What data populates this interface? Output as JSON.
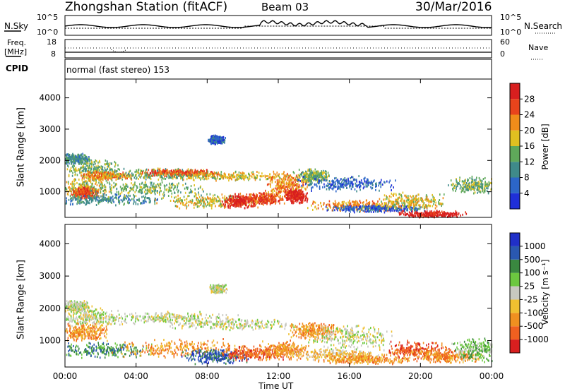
{
  "header": {
    "title": "Zhongshan Station (fitACF)",
    "beam": "Beam 03",
    "date": "30/Mar/2016"
  },
  "small_panels": {
    "nsky_label": "N.Sky",
    "nsearch_label": "N.Search",
    "nsky_ticks": [
      "10^5",
      "10^0"
    ],
    "nsearch_ticks": [
      "10^5",
      "10^0"
    ],
    "freq_label_1": "Freq.",
    "freq_label_2": "[MHz]",
    "freq_ticks": [
      "18",
      "8"
    ],
    "nave_label": "Nave",
    "nave_ticks": [
      "60",
      "0"
    ],
    "cpid_label": "CPID",
    "cpid_text": "normal (fast stereo) 153"
  },
  "chart_data": [
    {
      "type": "heatmap",
      "ylabel": "Slant Range [km]",
      "ylim": [
        180,
        4600
      ],
      "yticks": [
        1000,
        2000,
        3000,
        4000
      ],
      "x_ticks": [
        "00:00",
        "04:00",
        "08:00",
        "12:00",
        "16:00",
        "20:00",
        "00:00"
      ],
      "colorbar": {
        "label": "Power [dB]",
        "ticks": [
          "4",
          "8",
          "12",
          "16",
          "20",
          "24",
          "28"
        ],
        "colors": [
          "#1f2fd8",
          "#2c66c8",
          "#3f8a8a",
          "#5fa85a",
          "#e0c020",
          "#f08c1a",
          "#e8441c",
          "#d81f1f"
        ]
      },
      "blobs": [
        {
          "t": 0.5,
          "r": 2050,
          "dt": 1.0,
          "dr": 180,
          "c": 2
        },
        {
          "t": 1.5,
          "r": 1700,
          "dt": 1.8,
          "dr": 350,
          "c": 3
        },
        {
          "t": 2.3,
          "r": 1500,
          "dt": 1.6,
          "dr": 150,
          "c": 5
        },
        {
          "t": 1.2,
          "r": 1100,
          "dt": 1.6,
          "dr": 350,
          "c": 4
        },
        {
          "t": 1.1,
          "r": 950,
          "dt": 0.8,
          "dr": 200,
          "c": 6
        },
        {
          "t": 2.3,
          "r": 750,
          "dt": 3.5,
          "dr": 200,
          "c": 2
        },
        {
          "t": 5.5,
          "r": 1550,
          "dt": 3.5,
          "dr": 200,
          "c": 3
        },
        {
          "t": 6.5,
          "r": 1600,
          "dt": 2.5,
          "dr": 120,
          "c": 6
        },
        {
          "t": 9.5,
          "r": 1500,
          "dt": 4.0,
          "dr": 160,
          "c": 4
        },
        {
          "t": 4.5,
          "r": 1100,
          "dt": 3.5,
          "dr": 250,
          "c": 3
        },
        {
          "t": 8.0,
          "r": 700,
          "dt": 3.0,
          "dr": 250,
          "c": 4
        },
        {
          "t": 9.8,
          "r": 680,
          "dt": 1.0,
          "dr": 250,
          "c": 7
        },
        {
          "t": 11.2,
          "r": 780,
          "dt": 1.2,
          "dr": 200,
          "c": 6
        },
        {
          "t": 12.5,
          "r": 1200,
          "dt": 1.3,
          "dr": 400,
          "c": 5
        },
        {
          "t": 13.0,
          "r": 850,
          "dt": 0.7,
          "dr": 250,
          "c": 7
        },
        {
          "t": 14.0,
          "r": 1500,
          "dt": 1.0,
          "dr": 250,
          "c": 3
        },
        {
          "t": 15.8,
          "r": 1250,
          "dt": 3.0,
          "dr": 250,
          "c": 1
        },
        {
          "t": 16.5,
          "r": 550,
          "dt": 3.0,
          "dr": 200,
          "c": 5
        },
        {
          "t": 17.5,
          "r": 450,
          "dt": 3.0,
          "dr": 120,
          "c": 1
        },
        {
          "t": 20.6,
          "r": 280,
          "dt": 2.0,
          "dr": 120,
          "c": 7
        },
        {
          "t": 19.5,
          "r": 700,
          "dt": 2.0,
          "dr": 300,
          "c": 4
        },
        {
          "t": 8.5,
          "r": 2650,
          "dt": 0.5,
          "dr": 150,
          "c": 1
        },
        {
          "t": 23.0,
          "r": 1200,
          "dt": 1.5,
          "dr": 300,
          "c": 3
        }
      ]
    },
    {
      "type": "heatmap",
      "ylabel": "Slant Range [km]",
      "ylim": [
        180,
        4600
      ],
      "yticks": [
        1000,
        2000,
        3000,
        4000
      ],
      "x_ticks": [
        "00:00",
        "04:00",
        "08:00",
        "12:00",
        "16:00",
        "20:00",
        "00:00"
      ],
      "xlabel": "Time UT",
      "colorbar": {
        "label": "Velocity [m s⁻¹]",
        "ticks": [
          "1000",
          "500",
          "100",
          "25",
          "-25",
          "-100",
          "-500",
          "-1000"
        ],
        "colors": [
          "#2030c8",
          "#2a58b0",
          "#3a8840",
          "#6cc840",
          "#c8c8c0",
          "#f0c030",
          "#f09020",
          "#f06020",
          "#d81f1f"
        ]
      },
      "blobs": [
        {
          "t": 0.6,
          "r": 2050,
          "dt": 1.0,
          "dr": 200,
          "c": 4
        },
        {
          "t": 1.5,
          "r": 1700,
          "dt": 2.0,
          "dr": 300,
          "c": 4
        },
        {
          "t": 1.0,
          "r": 1250,
          "dt": 1.5,
          "dr": 300,
          "c": 6
        },
        {
          "t": 2.0,
          "r": 700,
          "dt": 3.0,
          "dr": 250,
          "c": 2
        },
        {
          "t": 6.0,
          "r": 1700,
          "dt": 4.0,
          "dr": 200,
          "c": 4
        },
        {
          "t": 9.5,
          "r": 1500,
          "dt": 4.0,
          "dr": 180,
          "c": 4
        },
        {
          "t": 6.5,
          "r": 750,
          "dt": 4.0,
          "dr": 300,
          "c": 6
        },
        {
          "t": 8.5,
          "r": 500,
          "dt": 2.0,
          "dr": 250,
          "c": 1
        },
        {
          "t": 10.5,
          "r": 600,
          "dt": 2.0,
          "dr": 250,
          "c": 7
        },
        {
          "t": 12.3,
          "r": 700,
          "dt": 1.5,
          "dr": 300,
          "c": 6
        },
        {
          "t": 14.0,
          "r": 1300,
          "dt": 1.5,
          "dr": 300,
          "c": 6
        },
        {
          "t": 16.0,
          "r": 1100,
          "dt": 2.5,
          "dr": 400,
          "c": 4
        },
        {
          "t": 15.5,
          "r": 550,
          "dt": 3.0,
          "dr": 200,
          "c": 5
        },
        {
          "t": 17.0,
          "r": 400,
          "dt": 3.0,
          "dr": 150,
          "c": 6
        },
        {
          "t": 19.8,
          "r": 700,
          "dt": 2.0,
          "dr": 300,
          "c": 7
        },
        {
          "t": 21.5,
          "r": 500,
          "dt": 2.0,
          "dr": 200,
          "c": 6
        },
        {
          "t": 23.2,
          "r": 700,
          "dt": 1.5,
          "dr": 400,
          "c": 3
        },
        {
          "t": 8.6,
          "r": 2600,
          "dt": 0.5,
          "dr": 150,
          "c": 4
        }
      ]
    }
  ]
}
